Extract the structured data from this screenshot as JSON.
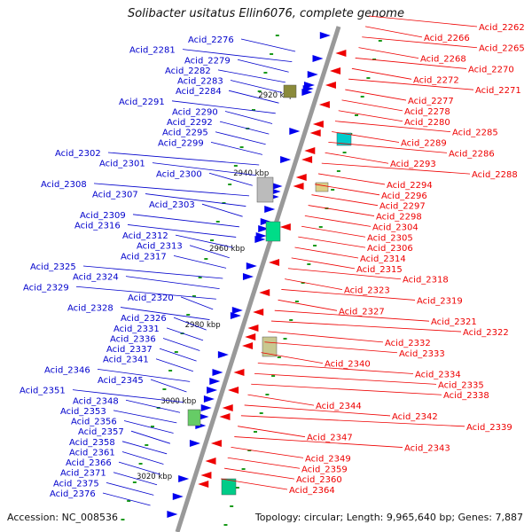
{
  "title": "Solibacter usitatus Ellin6076, complete genome",
  "footer": {
    "accession": "Accession: NC_008536",
    "info": "Topology: circular; Length: 9,965,640 bp; Genes: 7,887"
  },
  "colors": {
    "backbone": "#999999",
    "left_genes": "#0000ee",
    "right_genes": "#ee0000",
    "tick": "#1a9a1a",
    "left_label": "#0000cc",
    "right_label": "#ee0000"
  },
  "kbp_marks": [
    "2920 kbp",
    "2940 kbp",
    "2960 kbp",
    "2980 kbp",
    "3000 kbp",
    "3020 kbp"
  ],
  "left_labels": [
    "Acid_2276",
    "Acid_2281",
    "Acid_2279",
    "Acid_2282",
    "Acid_2283",
    "Acid_2284",
    "Acid_2291",
    "Acid_2290",
    "Acid_2292",
    "Acid_2295",
    "Acid_2299",
    "Acid_2302",
    "Acid_2301",
    "Acid_2300",
    "Acid_2308",
    "Acid_2307",
    "Acid_2303",
    "Acid_2309",
    "Acid_2316",
    "Acid_2312",
    "Acid_2313",
    "Acid_2317",
    "Acid_2325",
    "Acid_2324",
    "Acid_2329",
    "Acid_2320",
    "Acid_2328",
    "Acid_2326",
    "Acid_2331",
    "Acid_2336",
    "Acid_2337",
    "Acid_2341",
    "Acid_2346",
    "Acid_2345",
    "Acid_2351",
    "Acid_2348",
    "Acid_2353",
    "Acid_2356",
    "Acid_2357",
    "Acid_2358",
    "Acid_2361",
    "Acid_2366",
    "Acid_2371",
    "Acid_2375",
    "Acid_2376"
  ],
  "right_labels": [
    "Acid_2262",
    "Acid_2266",
    "Acid_2265",
    "Acid_2268",
    "Acid_2270",
    "Acid_2272",
    "Acid_2271",
    "Acid_2277",
    "Acid_2278",
    "Acid_2280",
    "Acid_2285",
    "Acid_2289",
    "Acid_2286",
    "Acid_2293",
    "Acid_2288",
    "Acid_2294",
    "Acid_2296",
    "Acid_2297",
    "Acid_2298",
    "Acid_2304",
    "Acid_2305",
    "Acid_2306",
    "Acid_2314",
    "Acid_2315",
    "Acid_2318",
    "Acid_2323",
    "Acid_2319",
    "Acid_2327",
    "Acid_2321",
    "Acid_2322",
    "Acid_2332",
    "Acid_2333",
    "Acid_2340",
    "Acid_2334",
    "Acid_2335",
    "Acid_2338",
    "Acid_2344",
    "Acid_2342",
    "Acid_2339",
    "Acid_2347",
    "Acid_2343",
    "Acid_2349",
    "Acid_2359",
    "Acid_2360",
    "Acid_2364"
  ]
}
